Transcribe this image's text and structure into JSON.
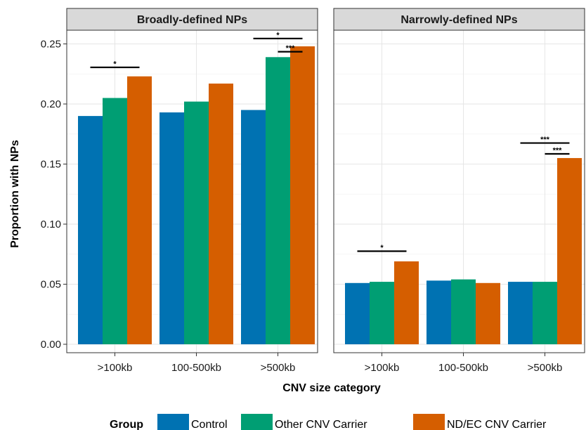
{
  "chart_data": {
    "type": "bar",
    "xlabel": "CNV size category",
    "ylabel": "Proportion with NPs",
    "ylim": [
      0,
      0.26
    ],
    "yticks": [
      "0.00",
      "0.05",
      "0.10",
      "0.15",
      "0.20",
      "0.25"
    ],
    "ytick_values": [
      0,
      0.05,
      0.1,
      0.15,
      0.2,
      0.25
    ],
    "categories": [
      ">100kb",
      "100-500kb",
      ">500kb"
    ],
    "grid": true,
    "legend": {
      "title": "Group",
      "placement": "bottom",
      "entries": [
        {
          "name": "Control",
          "color": "#0072B2"
        },
        {
          "name": "Other CNV Carrier",
          "color": "#009E73"
        },
        {
          "name": "ND/EC CNV Carrier",
          "color": "#D55E00"
        }
      ]
    },
    "panels": [
      {
        "title": "Broadly-defined NPs",
        "series": [
          {
            "name": "Control",
            "values": [
              0.19,
              0.193,
              0.195
            ]
          },
          {
            "name": "Other CNV Carrier",
            "values": [
              0.205,
              0.202,
              0.239
            ]
          },
          {
            "name": "ND/EC CNV Carrier",
            "values": [
              0.223,
              0.217,
              0.248
            ]
          }
        ],
        "annotations": [
          {
            "label": "*",
            "category": 0,
            "from": 0,
            "to": 2,
            "y": 0.2305
          },
          {
            "label": "***",
            "category": 2,
            "from": 1,
            "to": 2,
            "y": 0.2435
          },
          {
            "label": "*",
            "category": 2,
            "from": 0,
            "to": 2,
            "y": 0.2545
          }
        ]
      },
      {
        "title": "Narrowly-defined NPs",
        "series": [
          {
            "name": "Control",
            "values": [
              0.051,
              0.053,
              0.052
            ]
          },
          {
            "name": "Other CNV Carrier",
            "values": [
              0.052,
              0.054,
              0.052
            ]
          },
          {
            "name": "ND/EC CNV Carrier",
            "values": [
              0.069,
              0.051,
              0.155
            ]
          }
        ],
        "annotations": [
          {
            "label": "*",
            "category": 0,
            "from": 0,
            "to": 2,
            "y": 0.0775
          },
          {
            "label": "***",
            "category": 2,
            "from": 1,
            "to": 2,
            "y": 0.1585
          },
          {
            "label": "***",
            "category": 2,
            "from": 0,
            "to": 2,
            "y": 0.1675
          }
        ]
      }
    ]
  }
}
